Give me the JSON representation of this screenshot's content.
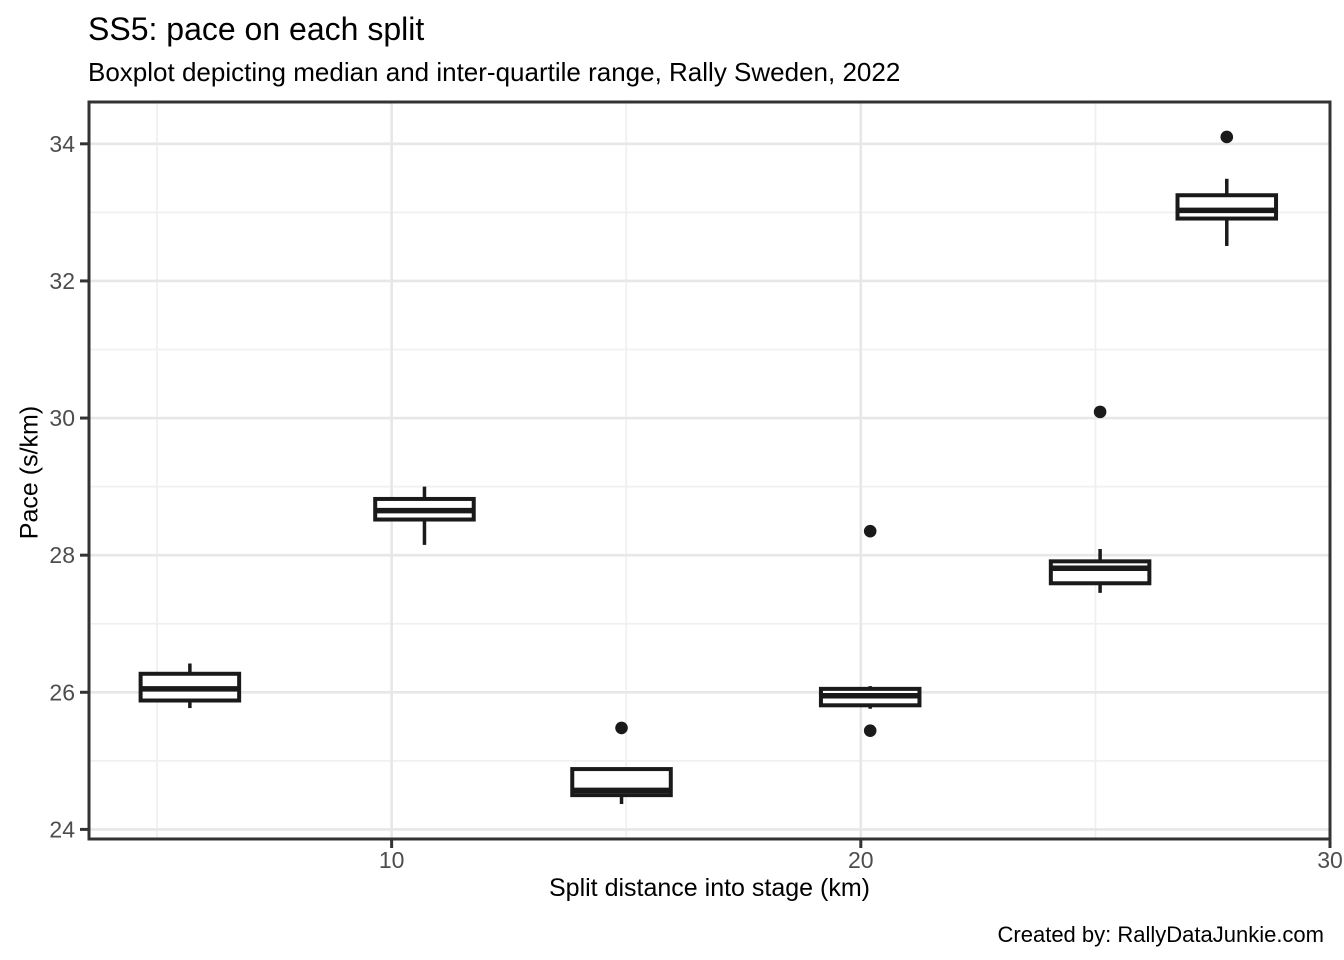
{
  "footer": {
    "credit": "Created by: RallyDataJunkie.com"
  },
  "chart_data": {
    "type": "boxplot",
    "title": "SS5: pace on each split",
    "subtitle": "Boxplot depicting median and inter-quartile range, Rally Sweden, 2022",
    "xlabel": "Split distance into stage (km)",
    "ylabel": "Pace (s/km)",
    "xlim": [
      3.55,
      30.0
    ],
    "ylim": [
      23.86,
      34.61
    ],
    "x_major_ticks": [
      10,
      20,
      30
    ],
    "x_minor_gridlines": [
      5,
      15,
      25
    ],
    "y_major_ticks": [
      24,
      26,
      28,
      30,
      32,
      34
    ],
    "y_minor_gridlines": [
      25,
      27,
      29,
      31,
      33
    ],
    "grid": true,
    "legend": "none",
    "box_width_km": 2.1,
    "boxes": [
      {
        "x": 5.7,
        "whisker_low": 25.77,
        "q1": 25.88,
        "median": 26.05,
        "q3": 26.27,
        "whisker_high": 26.42,
        "outliers": []
      },
      {
        "x": 10.7,
        "whisker_low": 28.15,
        "q1": 28.52,
        "median": 28.65,
        "q3": 28.82,
        "whisker_high": 29.0,
        "outliers": []
      },
      {
        "x": 14.9,
        "whisker_low": 24.37,
        "q1": 24.5,
        "median": 24.57,
        "q3": 24.88,
        "whisker_high": 24.88,
        "outliers": [
          25.48
        ]
      },
      {
        "x": 20.2,
        "whisker_low": 25.76,
        "q1": 25.81,
        "median": 25.95,
        "q3": 26.05,
        "whisker_high": 26.09,
        "outliers": [
          28.35,
          25.44
        ]
      },
      {
        "x": 25.1,
        "whisker_low": 27.45,
        "q1": 27.59,
        "median": 27.81,
        "q3": 27.91,
        "whisker_high": 28.09,
        "outliers": [
          30.09
        ]
      },
      {
        "x": 27.8,
        "whisker_low": 32.51,
        "q1": 32.91,
        "median": 33.03,
        "q3": 33.25,
        "whisker_high": 33.49,
        "outliers": [
          34.1
        ]
      }
    ],
    "colors": {
      "background": "#ffffff",
      "panel_border": "#333333",
      "grid_major": "#e7e7e7",
      "grid_minor": "#f0f0f0",
      "tick": "#333333",
      "tick_label": "#4d4d4d",
      "box_stroke": "#1a1a1a",
      "box_fill": "#ffffff",
      "text": "#000000"
    }
  }
}
